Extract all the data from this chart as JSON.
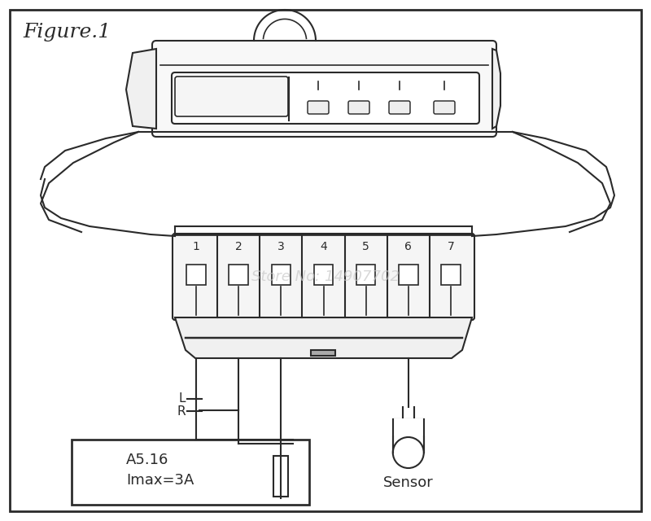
{
  "title": "Figure.1",
  "bg_color": "#ffffff",
  "line_color": "#2a2a2a",
  "watermark": "Store No: 14907702",
  "watermark_color": "#c8c8c8",
  "sensor_label": "Sensor",
  "box_label1": "A5.16",
  "box_label2": "Imax=3A",
  "terminal_labels": [
    "1",
    "2",
    "3",
    "4",
    "5",
    "6",
    "7"
  ]
}
